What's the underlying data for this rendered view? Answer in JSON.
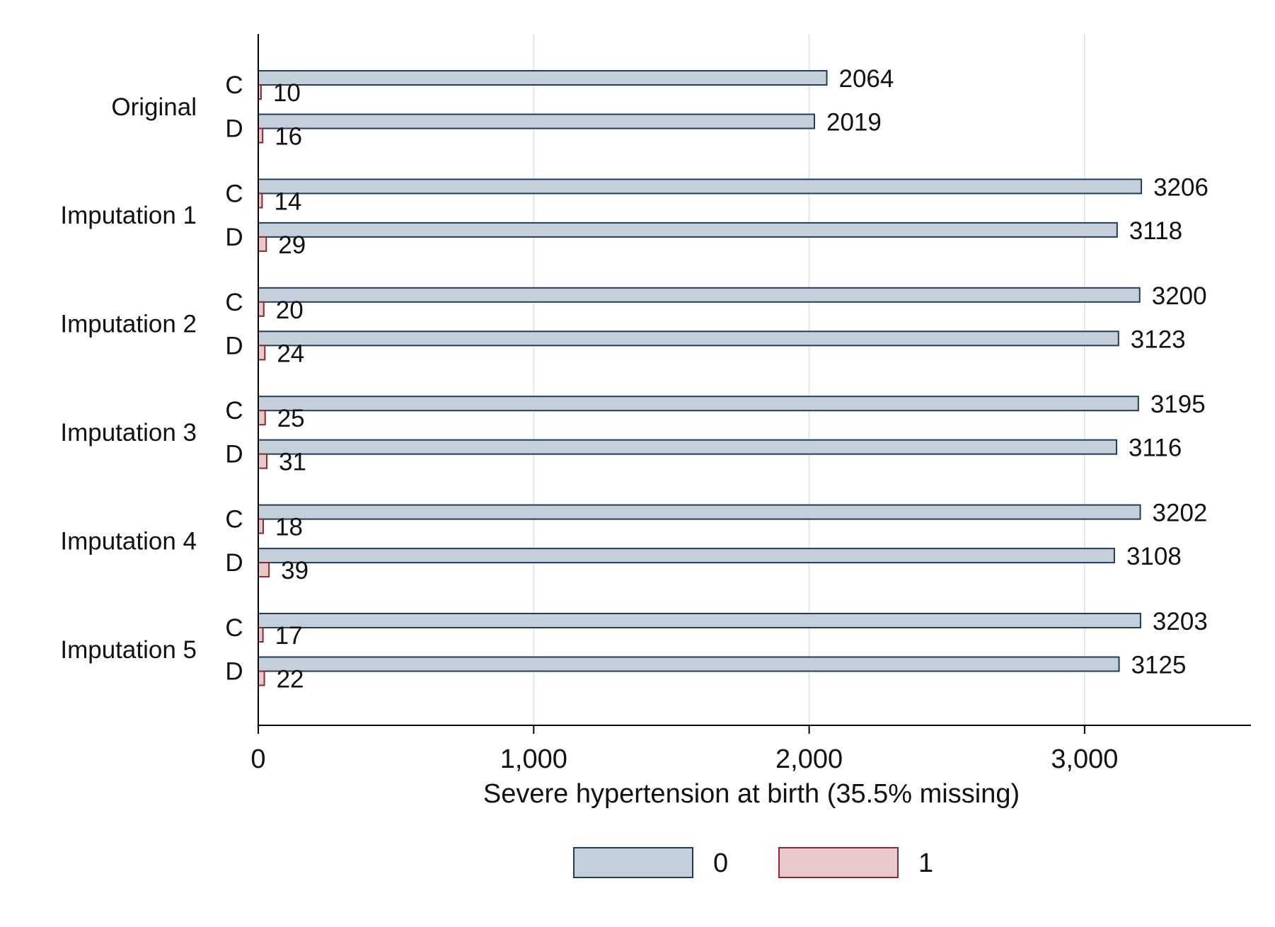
{
  "chart_data": {
    "type": "bar",
    "orientation": "horizontal",
    "xlabel": "Severe hypertension at birth (35.5% missing)",
    "xlim": [
      0,
      3600
    ],
    "xticks": [
      0,
      1000,
      2000,
      3000
    ],
    "xtick_labels": [
      "0",
      "1,000",
      "2,000",
      "3,000"
    ],
    "grid": "vertical",
    "legend_position": "bottom",
    "colors": {
      "0": "#c5cfd9",
      "0_edge": "#1f3d5c",
      "1": "#e8c8c8",
      "1_edge": "#8a2a2a",
      "grid": "#deeaea"
    },
    "series": [
      {
        "name": "0",
        "color": "#c5cfd9"
      },
      {
        "name": "1",
        "color": "#e8c8c8"
      }
    ],
    "groups": [
      {
        "label": "Original",
        "rows": [
          {
            "label": "C",
            "values": [
              2064,
              10
            ],
            "labels": [
              "2064",
              "10"
            ]
          },
          {
            "label": "D",
            "values": [
              2019,
              16
            ],
            "labels": [
              "2019",
              "16"
            ]
          }
        ]
      },
      {
        "label": "Imputation 1",
        "rows": [
          {
            "label": "C",
            "values": [
              3206,
              14
            ],
            "labels": [
              "3206",
              "14"
            ]
          },
          {
            "label": "D",
            "values": [
              3118,
              29
            ],
            "labels": [
              "3118",
              "29"
            ]
          }
        ]
      },
      {
        "label": "Imputation 2",
        "rows": [
          {
            "label": "C",
            "values": [
              3200,
              20
            ],
            "labels": [
              "3200",
              "20"
            ]
          },
          {
            "label": "D",
            "values": [
              3123,
              24
            ],
            "labels": [
              "3123",
              "24"
            ]
          }
        ]
      },
      {
        "label": "Imputation 3",
        "rows": [
          {
            "label": "C",
            "values": [
              3195,
              25
            ],
            "labels": [
              "3195",
              "25"
            ]
          },
          {
            "label": "D",
            "values": [
              3116,
              31
            ],
            "labels": [
              "3116",
              "31"
            ]
          }
        ]
      },
      {
        "label": "Imputation 4",
        "rows": [
          {
            "label": "C",
            "values": [
              3202,
              18
            ],
            "labels": [
              "3202",
              "18"
            ]
          },
          {
            "label": "D",
            "values": [
              3108,
              39
            ],
            "labels": [
              "3108",
              "39"
            ]
          }
        ]
      },
      {
        "label": "Imputation 5",
        "rows": [
          {
            "label": "C",
            "values": [
              3203,
              17
            ],
            "labels": [
              "3203",
              "17"
            ]
          },
          {
            "label": "D",
            "values": [
              3125,
              22
            ],
            "labels": [
              "3125",
              "22"
            ]
          }
        ]
      }
    ]
  }
}
